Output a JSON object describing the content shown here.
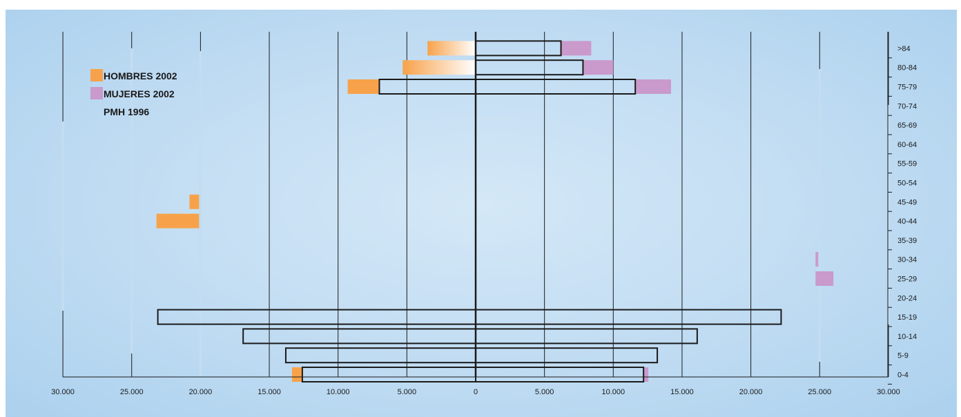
{
  "chart_data": {
    "type": "bar",
    "orientation": "horizontal",
    "age_groups": [
      "0-4",
      "5-9",
      "10-14",
      "15-19",
      "20-24",
      "25-29",
      "30-34",
      "35-39",
      "40-44",
      "45-49",
      "50-54",
      "55-59",
      "60-64",
      "65-69",
      "70-74",
      "75-79",
      "80-84",
      ">84"
    ],
    "x_ticks": [
      "30.000",
      "25.000",
      "20.000",
      "15.000",
      "10.000",
      "5.000",
      "0",
      "5.000",
      "10.000",
      "15.000",
      "20.000",
      "25.000",
      "30.000"
    ],
    "xlim": [
      -30000,
      30000
    ],
    "legend": {
      "placement": "top-left",
      "entries": [
        {
          "label": "HOMBRES 2002",
          "color": "#f7a24a"
        },
        {
          "label": "MUJERES 2002",
          "color": "#c99acb"
        },
        {
          "label": "PMH 1996",
          "color": null
        }
      ]
    },
    "hombres_2002": [
      {
        "age": "0-4",
        "start": 13350,
        "end": 12550
      },
      {
        "age": "40-44",
        "start": 23200,
        "end": 20100
      },
      {
        "age": "45-49",
        "start": 20800,
        "end": 20100
      },
      {
        "age": "75-79",
        "start": 9300,
        "end": 7000
      },
      {
        "age": "80-84",
        "start": 5300,
        "end": 0,
        "gradient": true
      },
      {
        "age": ">84",
        "start": 3500,
        "end": 0,
        "gradient": true
      }
    ],
    "mujeres_2002": [
      {
        "age": "0-4",
        "start": 12200,
        "end": 12550
      },
      {
        "age": "25-29",
        "start": 24700,
        "end": 26000
      },
      {
        "age": "30-34",
        "start": 24700,
        "end": 24900
      },
      {
        "age": "75-79",
        "start": 11600,
        "end": 14200
      },
      {
        "age": "80-84",
        "start": 7800,
        "end": 10000
      },
      {
        "age": ">84",
        "start": 6200,
        "end": 8400
      }
    ],
    "pmh_1996": {
      "hombres": {
        "0-4": 12600,
        "5-9": 13800,
        "10-14": 16900,
        "15-19": 23100,
        "75-79": 7000,
        "80-84": 0,
        ">84": 0
      },
      "mujeres": {
        "0-4": 12200,
        "5-9": 13200,
        "10-14": 16100,
        "15-19": 22200,
        "75-79": 11600,
        "80-84": 7800,
        ">84": 6200
      }
    }
  }
}
